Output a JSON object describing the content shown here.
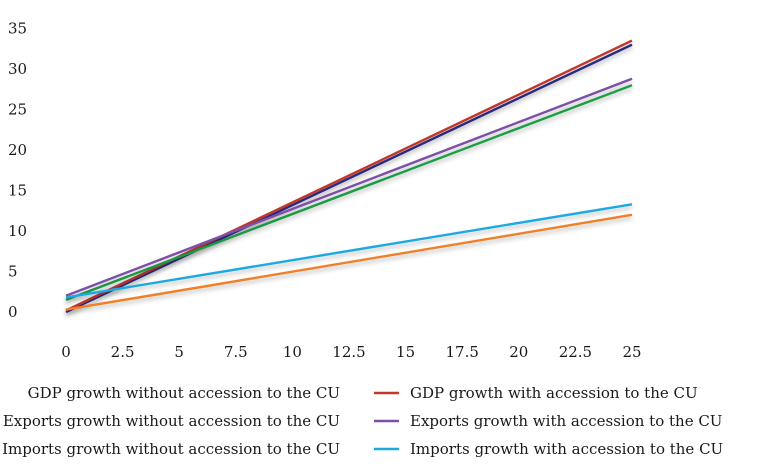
{
  "chart_data": {
    "type": "line",
    "x": [
      0,
      25
    ],
    "xticks": [
      "0",
      "2.5",
      "5",
      "7.5",
      "10",
      "12.5",
      "15",
      "17.5",
      "20",
      "22.5",
      "25"
    ],
    "yticks": [
      "0",
      "5",
      "10",
      "15",
      "20",
      "25",
      "30",
      "35"
    ],
    "xlim": [
      0,
      25
    ],
    "ylim": [
      0,
      35
    ],
    "grid": false,
    "legend_position": "bottom",
    "series": [
      {
        "name": "GDP growth without accession to the CU",
        "values": [
          0,
          33
        ],
        "color": "#2e2e8f"
      },
      {
        "name": "GDP growth with accession to the CU",
        "values": [
          0.2,
          33.5
        ],
        "color": "#c0392b"
      },
      {
        "name": "Exports growth without accession to the CU",
        "values": [
          1.5,
          28
        ],
        "color": "#1fa64a"
      },
      {
        "name": "Exports growth with accession to the CU",
        "values": [
          2,
          28.8
        ],
        "color": "#7d4fa6"
      },
      {
        "name": "Imports growth without accession to the CU",
        "values": [
          0.3,
          12
        ],
        "color": "#f07f25"
      },
      {
        "name": "Imports growth with accession to the CU",
        "values": [
          1.8,
          13.3
        ],
        "color": "#1ca9e1"
      }
    ]
  },
  "legend": [
    {
      "label": "GDP growth without accession to the CU",
      "color": "#2e2e8f"
    },
    {
      "label": "GDP growth with accession to the CU",
      "color": "#c0392b"
    },
    {
      "label": "Exports growth without accession to the CU",
      "color": "#1fa64a"
    },
    {
      "label": "Exports growth with accession to the CU",
      "color": "#7d4fa6"
    },
    {
      "label": "Imports growth without accession to the CU",
      "color": "#f07f25"
    },
    {
      "label": "Imports growth with accession to the CU",
      "color": "#1ca9e1"
    }
  ]
}
